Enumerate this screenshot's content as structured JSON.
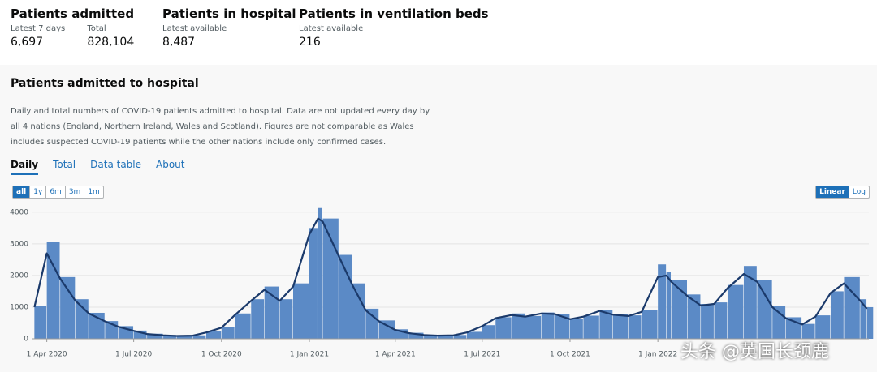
{
  "header": {
    "cards": [
      {
        "title": "Patients admitted",
        "metrics": [
          {
            "label": "Latest 7 days",
            "value": "6,697"
          },
          {
            "label": "Total",
            "value": "828,104"
          }
        ]
      },
      {
        "title": "Patients in hospital",
        "metrics": [
          {
            "label": "Latest available",
            "value": "8,487"
          }
        ]
      },
      {
        "title": "Patients in ventilation beds",
        "metrics": [
          {
            "label": "Latest available",
            "value": "216"
          }
        ]
      }
    ]
  },
  "section": {
    "title": "Patients admitted to hospital",
    "description": "Daily and total numbers of COVID-19 patients admitted to hospital. Data are not updated every day by all 4 nations (England, Northern Ireland, Wales and Scotland). Figures are not comparable as Wales includes suspected COVID-19 patients while the other nations include only confirmed cases.",
    "tabs": [
      "Daily",
      "Total",
      "Data table",
      "About"
    ],
    "ranges": [
      "all",
      "1y",
      "6m",
      "3m",
      "1m"
    ],
    "scales": [
      "Linear",
      "Log"
    ]
  },
  "watermark": "头条 @英国长颈鹿",
  "chart_data": {
    "type": "bar",
    "x": [
      "2020-03-19",
      "2020-04-01",
      "2020-04-15",
      "2020-05-01",
      "2020-05-15",
      "2020-06-01",
      "2020-06-15",
      "2020-07-01",
      "2020-07-15",
      "2020-08-01",
      "2020-08-15",
      "2020-09-01",
      "2020-09-15",
      "2020-10-01",
      "2020-10-15",
      "2020-11-01",
      "2020-11-15",
      "2020-12-01",
      "2020-12-15",
      "2021-01-01",
      "2021-01-10",
      "2021-01-15",
      "2021-02-01",
      "2021-02-15",
      "2021-03-01",
      "2021-03-15",
      "2021-04-01",
      "2021-04-15",
      "2021-05-01",
      "2021-05-15",
      "2021-06-01",
      "2021-06-15",
      "2021-07-01",
      "2021-07-15",
      "2021-08-01",
      "2021-08-15",
      "2021-09-01",
      "2021-09-15",
      "2021-10-01",
      "2021-10-15",
      "2021-11-01",
      "2021-11-15",
      "2021-12-01",
      "2021-12-15",
      "2022-01-01",
      "2022-01-10",
      "2022-01-15",
      "2022-02-01",
      "2022-02-15",
      "2022-03-01",
      "2022-03-15",
      "2022-04-01",
      "2022-04-15",
      "2022-05-01",
      "2022-05-15",
      "2022-06-01",
      "2022-06-15",
      "2022-07-01",
      "2022-07-15",
      "2022-08-01",
      "2022-08-08"
    ],
    "series": [
      {
        "type": "bar",
        "color": "#5b8ac6",
        "values": [
          1050,
          3050,
          1950,
          1250,
          820,
          560,
          400,
          260,
          160,
          120,
          95,
          110,
          230,
          380,
          800,
          1250,
          1650,
          1250,
          1750,
          3500,
          4130,
          3800,
          2650,
          1750,
          950,
          580,
          300,
          190,
          130,
          110,
          120,
          220,
          430,
          680,
          800,
          720,
          830,
          790,
          640,
          730,
          900,
          780,
          740,
          900,
          2350,
          2100,
          1850,
          1400,
          1100,
          1150,
          1700,
          2300,
          1850,
          1050,
          680,
          470,
          740,
          1500,
          1950,
          1250,
          1000
        ]
      },
      {
        "type": "line",
        "color": "#1b3a6b",
        "values": [
          1000,
          2700,
          1900,
          1200,
          800,
          550,
          380,
          250,
          150,
          110,
          90,
          100,
          200,
          350,
          750,
          1200,
          1550,
          1200,
          1650,
          3300,
          3800,
          3700,
          2600,
          1700,
          900,
          550,
          280,
          180,
          120,
          100,
          110,
          200,
          400,
          650,
          750,
          700,
          800,
          780,
          620,
          700,
          880,
          760,
          720,
          850,
          1950,
          2000,
          1800,
          1350,
          1050,
          1100,
          1600,
          2050,
          1800,
          1000,
          650,
          450,
          700,
          1450,
          1750,
          1200,
          950
        ]
      }
    ],
    "xlim": [
      "2020-03-17",
      "2022-08-10"
    ],
    "xticks": [
      {
        "value": "2020-04-01",
        "label": "1 Apr 2020"
      },
      {
        "value": "2020-07-01",
        "label": "1 Jul 2020"
      },
      {
        "value": "2020-10-01",
        "label": "1 Oct 2020"
      },
      {
        "value": "2021-01-01",
        "label": "1 Jan 2021"
      },
      {
        "value": "2021-04-01",
        "label": "1 Apr 2021"
      },
      {
        "value": "2021-07-01",
        "label": "1 Jul 2021"
      },
      {
        "value": "2021-10-01",
        "label": "1 Oct 2021"
      },
      {
        "value": "2022-01-01",
        "label": "1 Jan 2022"
      }
    ],
    "ylim": [
      0,
      4200
    ],
    "yticks": [
      0,
      1000,
      2000,
      3000,
      4000
    ],
    "grid": true
  }
}
